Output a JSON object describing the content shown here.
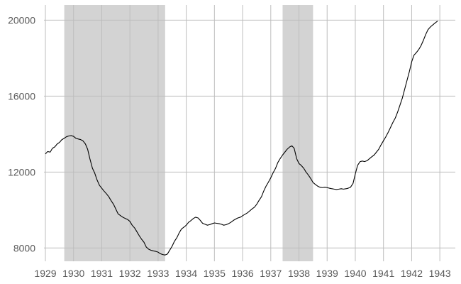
{
  "chart_data": {
    "type": "line",
    "title": "",
    "xlabel": "",
    "ylabel": "",
    "xlim": [
      1928.95,
      1943.55
    ],
    "ylim": [
      7300,
      20800
    ],
    "x_ticks": [
      1929,
      1930,
      1931,
      1932,
      1933,
      1934,
      1935,
      1936,
      1937,
      1938,
      1939,
      1940,
      1941,
      1942,
      1943
    ],
    "x_tick_labels": [
      "1929",
      "1930",
      "1931",
      "1932",
      "1933",
      "1934",
      "1935",
      "1936",
      "1937",
      "1938",
      "1939",
      "1940",
      "1941",
      "1942",
      "1943"
    ],
    "y_ticks": [
      8000,
      12000,
      16000,
      20000
    ],
    "y_tick_labels": [
      "8000",
      "12000",
      "16000",
      "20000"
    ],
    "grid": true,
    "legend": "none",
    "shaded_periods": [
      {
        "start": 1929.67,
        "end": 1933.25
      },
      {
        "start": 1937.42,
        "end": 1938.5
      }
    ],
    "colors": {
      "line": "#000000",
      "shade": "#d3d3d3",
      "grid": "#bdbdbd",
      "tick_text": "#595959"
    },
    "series": [
      {
        "x": [
          1929.0,
          1929.08,
          1929.17,
          1929.25,
          1929.33,
          1929.42,
          1929.5,
          1929.58,
          1929.67,
          1929.75,
          1929.83,
          1929.92,
          1930.0,
          1930.08,
          1930.17,
          1930.25,
          1930.33,
          1930.42,
          1930.5,
          1930.58,
          1930.67,
          1930.75,
          1930.83,
          1930.92,
          1931.0,
          1931.08,
          1931.17,
          1931.25,
          1931.33,
          1931.42,
          1931.5,
          1931.58,
          1931.67,
          1931.75,
          1931.83,
          1931.92,
          1932.0,
          1932.08,
          1932.17,
          1932.25,
          1932.33,
          1932.42,
          1932.5,
          1932.58,
          1932.67,
          1932.75,
          1932.83,
          1932.92,
          1933.0,
          1933.08,
          1933.17,
          1933.25,
          1933.33,
          1933.42,
          1933.5,
          1933.58,
          1933.67,
          1933.75,
          1933.83,
          1933.92,
          1934.0,
          1934.08,
          1934.17,
          1934.25,
          1934.33,
          1934.42,
          1934.5,
          1934.58,
          1934.67,
          1934.75,
          1934.83,
          1934.92,
          1935.0,
          1935.08,
          1935.17,
          1935.25,
          1935.33,
          1935.42,
          1935.5,
          1935.58,
          1935.67,
          1935.75,
          1935.83,
          1935.92,
          1936.0,
          1936.08,
          1936.17,
          1936.25,
          1936.33,
          1936.42,
          1936.5,
          1936.58,
          1936.67,
          1936.75,
          1936.83,
          1936.92,
          1937.0,
          1937.08,
          1937.17,
          1937.25,
          1937.33,
          1937.42,
          1937.5,
          1937.58,
          1937.67,
          1937.75,
          1937.83,
          1937.92,
          1938.0,
          1938.08,
          1938.17,
          1938.25,
          1938.33,
          1938.42,
          1938.5,
          1938.58,
          1938.67,
          1938.75,
          1938.83,
          1938.92,
          1939.0,
          1939.08,
          1939.17,
          1939.25,
          1939.33,
          1939.42,
          1939.5,
          1939.58,
          1939.67,
          1939.75,
          1939.83,
          1939.92,
          1940.0,
          1940.08,
          1940.17,
          1940.25,
          1940.33,
          1940.42,
          1940.5,
          1940.58,
          1940.67,
          1940.75,
          1940.83,
          1940.92,
          1941.0,
          1941.08,
          1941.17,
          1941.25,
          1941.33,
          1941.42,
          1941.5,
          1941.58,
          1941.67,
          1941.75,
          1941.83,
          1941.92,
          1942.0,
          1942.08,
          1942.17,
          1942.25,
          1942.33,
          1942.42,
          1942.5,
          1942.58,
          1942.67,
          1942.75,
          1942.83,
          1942.92
        ],
        "y": [
          12950,
          13080,
          13050,
          13250,
          13320,
          13480,
          13560,
          13700,
          13780,
          13860,
          13900,
          13920,
          13880,
          13780,
          13740,
          13710,
          13650,
          13480,
          13200,
          12700,
          12200,
          11950,
          11600,
          11300,
          11150,
          11000,
          10850,
          10700,
          10500,
          10300,
          10050,
          9800,
          9700,
          9620,
          9560,
          9500,
          9400,
          9200,
          9050,
          8850,
          8650,
          8450,
          8300,
          8050,
          7930,
          7880,
          7850,
          7820,
          7780,
          7700,
          7650,
          7630,
          7680,
          7900,
          8100,
          8350,
          8550,
          8800,
          9000,
          9100,
          9200,
          9350,
          9450,
          9550,
          9620,
          9580,
          9450,
          9300,
          9250,
          9200,
          9230,
          9280,
          9320,
          9300,
          9280,
          9250,
          9200,
          9230,
          9280,
          9350,
          9450,
          9520,
          9580,
          9620,
          9700,
          9770,
          9850,
          9950,
          10050,
          10150,
          10300,
          10500,
          10700,
          11000,
          11250,
          11480,
          11700,
          11950,
          12200,
          12500,
          12700,
          12900,
          13050,
          13200,
          13320,
          13380,
          13250,
          12700,
          12450,
          12350,
          12200,
          12000,
          11850,
          11650,
          11450,
          11350,
          11250,
          11200,
          11180,
          11200,
          11180,
          11150,
          11120,
          11100,
          11080,
          11100,
          11120,
          11100,
          11120,
          11150,
          11200,
          11400,
          11900,
          12350,
          12550,
          12580,
          12550,
          12600,
          12700,
          12800,
          12900,
          13050,
          13200,
          13450,
          13650,
          13850,
          14100,
          14350,
          14600,
          14850,
          15150,
          15500,
          15900,
          16350,
          16800,
          17300,
          17800,
          18150,
          18300,
          18450,
          18650,
          18950,
          19250,
          19500,
          19650,
          19750,
          19850,
          19950
        ]
      }
    ]
  }
}
